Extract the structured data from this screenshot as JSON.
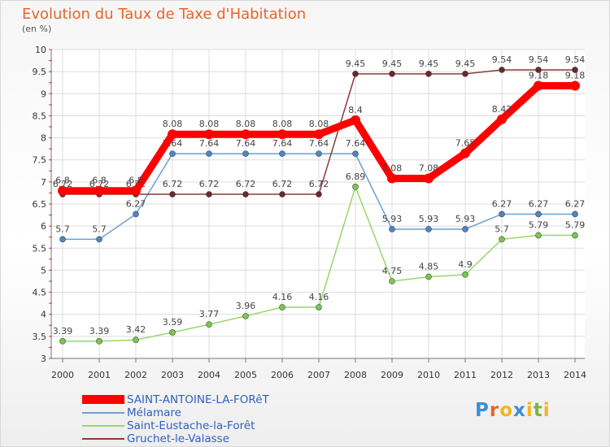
{
  "title": "Evolution du Taux de Taxe d'Habitation",
  "subtitle": "(en %)",
  "logo": {
    "text": "Proxiti",
    "letter_colors": [
      "#3a8ed8",
      "#e8642a",
      "#f2b51c",
      "#3a8ed8",
      "#f2b51c",
      "#7ab648",
      "#f2b51c"
    ]
  },
  "chart_data": {
    "type": "line",
    "x": [
      2000,
      2001,
      2002,
      2003,
      2004,
      2005,
      2006,
      2007,
      2008,
      2009,
      2010,
      2011,
      2012,
      2013,
      2014
    ],
    "ylim": [
      3,
      10
    ],
    "yticks": [
      "3",
      "3.5",
      "4",
      "4.5",
      "5",
      "5.5",
      "6",
      "6.5",
      "7",
      "7.5",
      "8",
      "8.5",
      "9",
      "9.5",
      "10"
    ],
    "grid": true,
    "legend_position": "bottom",
    "series": [
      {
        "name": "Saint-Eustache-la-Forêt",
        "color": "#99d66a",
        "marker_color": "#79c94a",
        "values": [
          3.39,
          3.39,
          3.42,
          3.59,
          3.77,
          3.96,
          4.16,
          4.16,
          6.89,
          4.75,
          4.85,
          4.9,
          5.7,
          5.79,
          5.79
        ],
        "labels": [
          "3.39",
          "3.39",
          "3.42",
          "3.59",
          "3.77",
          "3.96",
          "4.16",
          "4.16",
          "6.89",
          "4.75",
          "4.85",
          "4.9",
          "5.7",
          "5.79",
          "5.79"
        ]
      },
      {
        "name": "Mélamare",
        "color": "#6c9fd0",
        "marker_color": "#4d86c2",
        "values": [
          5.7,
          5.7,
          6.27,
          7.64,
          7.64,
          7.64,
          7.64,
          7.64,
          7.64,
          5.93,
          5.93,
          5.93,
          6.27,
          6.27,
          6.27
        ],
        "labels": [
          "5.7",
          "5.7",
          "6.27",
          "7.64",
          "7.64",
          "7.64",
          "7.64",
          "7.64",
          "7.64",
          "5.93",
          "5.93",
          "5.93",
          "6.27",
          "6.27",
          "6.27"
        ]
      },
      {
        "name": "Gruchet-le-Valasse",
        "color": "#8a3a3a",
        "marker_color": "#6e2626",
        "values": [
          6.72,
          6.72,
          6.72,
          6.72,
          6.72,
          6.72,
          6.72,
          6.72,
          9.45,
          9.45,
          9.45,
          9.45,
          9.54,
          9.54,
          9.54
        ],
        "labels": [
          "6.72",
          "6.72",
          "6.72",
          "6.72",
          "6.72",
          "6.72",
          "6.72",
          "6.72",
          "9.45",
          "9.45",
          "9.45",
          "9.45",
          "9.54",
          "9.54",
          "9.54"
        ]
      },
      {
        "name": "SAINT-ANTOINE-LA-FORêT",
        "color": "#ff0000",
        "marker_color": "#ff0000",
        "values": [
          6.8,
          6.8,
          6.8,
          8.08,
          8.08,
          8.08,
          8.08,
          8.08,
          8.4,
          7.08,
          7.08,
          7.65,
          8.42,
          9.18,
          9.18
        ],
        "labels": [
          "6.8",
          "6.8",
          "6.8",
          "8.08",
          "8.08",
          "8.08",
          "8.08",
          "8.08",
          "8.4",
          "7.08",
          "7.08",
          "7.65",
          "8.42",
          "9.18",
          "9.18"
        ]
      }
    ]
  },
  "legend": [
    {
      "label": "SAINT-ANTOINE-LA-FORêT",
      "color": "#ff0000",
      "text_color": "#2f5fc4"
    },
    {
      "label": "Mélamare",
      "color": "#6c9fd0",
      "text_color": "#2f5fc4"
    },
    {
      "label": "Saint-Eustache-la-Forêt",
      "color": "#99d66a",
      "text_color": "#2f5fc4"
    },
    {
      "label": "Gruchet-le-Valasse",
      "color": "#8a3a3a",
      "text_color": "#2f5fc4"
    }
  ]
}
